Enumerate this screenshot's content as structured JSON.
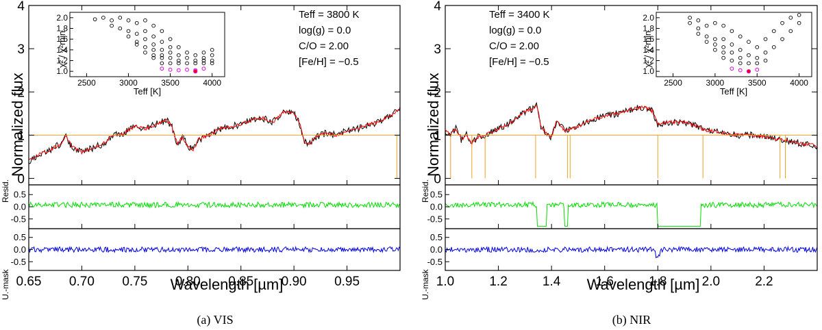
{
  "chart_data": [
    {
      "type": "line",
      "panel_id": "vis",
      "caption": "(a) VIS",
      "xlabel": "Wavelength [µm]",
      "ylabel": "Normalized flux",
      "xlim": [
        0.65,
        1.0
      ],
      "ylim": [
        -0.15,
        4.0
      ],
      "xticks": [
        "0.65",
        "0.70",
        "0.75",
        "0.80",
        "0.85",
        "0.90",
        "0.95"
      ],
      "xtick_values": [
        0.65,
        0.7,
        0.75,
        0.8,
        0.85,
        0.9,
        0.95
      ],
      "yticks": [
        "0",
        "1",
        "2",
        "3",
        "4"
      ],
      "ytick_values": [
        0,
        1,
        2,
        3,
        4
      ],
      "params": [
        "Teff = 3800 K",
        "log(g) = 0.0",
        "C/O = 2.00",
        "[Fe/H] = −0.5"
      ],
      "spectrum_knots": {
        "x": [
          0.65,
          0.66,
          0.67,
          0.68,
          0.685,
          0.69,
          0.7,
          0.71,
          0.72,
          0.73,
          0.74,
          0.75,
          0.76,
          0.77,
          0.78,
          0.785,
          0.79,
          0.795,
          0.8,
          0.805,
          0.81,
          0.82,
          0.83,
          0.84,
          0.85,
          0.86,
          0.87,
          0.88,
          0.89,
          0.9,
          0.905,
          0.91,
          0.915,
          0.92,
          0.93,
          0.94,
          0.95,
          0.96,
          0.97,
          0.98,
          0.99,
          1.0
        ],
        "y": [
          0.4,
          0.55,
          0.65,
          0.8,
          1.0,
          0.75,
          0.6,
          0.7,
          0.8,
          1.0,
          1.05,
          1.2,
          1.15,
          1.25,
          1.35,
          1.2,
          0.8,
          0.95,
          0.75,
          0.65,
          0.9,
          1.0,
          1.15,
          1.2,
          1.25,
          1.35,
          1.4,
          1.3,
          1.55,
          1.5,
          1.3,
          0.85,
          0.8,
          0.95,
          1.05,
          1.0,
          1.1,
          1.15,
          1.25,
          1.3,
          1.45,
          1.6
        ]
      },
      "mask_level": 1.0,
      "mask_edges": [
        0.997
      ],
      "residual_panels": [
        "Resid.",
        "U.-mask"
      ],
      "residual_ylim": [
        -0.9,
        0.9
      ],
      "residual_ticks": [
        "0.5",
        "0.0",
        "-0.5"
      ],
      "residual_tick_values": [
        0.5,
        0.0,
        -0.5
      ],
      "inset": {
        "xlabel": "Teff [K]",
        "ylabel": "χ² / χ²min",
        "xlim": [
          2300,
          4150
        ],
        "ylim": [
          0.9,
          2.1
        ],
        "xticks": [
          "2500",
          "3000",
          "3500",
          "4000"
        ],
        "xtick_values": [
          2500,
          3000,
          3500,
          4000
        ],
        "yticks": [
          "1.0",
          "1.2",
          "1.4",
          "1.6",
          "1.8",
          "2.0"
        ],
        "ytick_values": [
          1.0,
          1.2,
          1.4,
          1.6,
          1.8,
          2.0
        ],
        "black_teff": [
          2600,
          2700,
          2800,
          2800,
          2900,
          2900,
          3000,
          3000,
          3000,
          3100,
          3100,
          3100,
          3100,
          3200,
          3200,
          3200,
          3200,
          3200,
          3300,
          3300,
          3300,
          3300,
          3300,
          3300,
          3400,
          3400,
          3400,
          3400,
          3400,
          3400,
          3500,
          3500,
          3500,
          3500,
          3500,
          3600,
          3600,
          3600,
          3600,
          3700,
          3700,
          3700,
          3800,
          3800,
          3800,
          3900,
          3900,
          3900,
          3900,
          4000,
          4000,
          4000,
          4000
        ],
        "black_chi": [
          1.97,
          2.0,
          1.95,
          1.85,
          2.0,
          1.8,
          1.95,
          1.75,
          1.65,
          1.9,
          1.7,
          1.55,
          1.5,
          1.95,
          1.75,
          1.6,
          1.45,
          1.35,
          1.85,
          1.65,
          1.5,
          1.4,
          1.3,
          1.25,
          1.75,
          1.55,
          1.4,
          1.3,
          1.25,
          1.15,
          1.6,
          1.45,
          1.35,
          1.25,
          1.15,
          1.45,
          1.3,
          1.2,
          1.15,
          1.35,
          1.25,
          1.15,
          1.3,
          1.2,
          1.15,
          1.35,
          1.25,
          1.2,
          1.15,
          1.4,
          1.3,
          1.2,
          1.15
        ],
        "magenta_teff": [
          3400,
          3500,
          3600,
          3700,
          3800,
          3900
        ],
        "magenta_chi": [
          1.05,
          1.03,
          1.02,
          1.03,
          1.02,
          1.05
        ],
        "best_teff": 3800,
        "best_chi": 1.0
      }
    },
    {
      "type": "line",
      "panel_id": "nir",
      "caption": "(b) NIR",
      "xlabel": "Wavelength [µm]",
      "ylabel": "Normalized flux",
      "xlim": [
        1.0,
        2.4
      ],
      "ylim": [
        -0.15,
        4.0
      ],
      "xticks": [
        "1.0",
        "1.2",
        "1.4",
        "1.6",
        "1.8",
        "2.0",
        "2.2"
      ],
      "xtick_values": [
        1.0,
        1.2,
        1.4,
        1.6,
        1.8,
        2.0,
        2.2
      ],
      "yticks": [
        "0",
        "1",
        "2",
        "3",
        "4"
      ],
      "ytick_values": [
        0,
        1,
        2,
        3,
        4
      ],
      "params": [
        "Teff = 3400 K",
        "log(g) = 0.0",
        "C/O = 2.00",
        "[Fe/H] = −0.5"
      ],
      "spectrum_knots": {
        "x": [
          1.0,
          1.02,
          1.04,
          1.06,
          1.08,
          1.1,
          1.12,
          1.15,
          1.2,
          1.25,
          1.3,
          1.33,
          1.345,
          1.36,
          1.38,
          1.4,
          1.42,
          1.45,
          1.5,
          1.55,
          1.6,
          1.65,
          1.7,
          1.75,
          1.78,
          1.8,
          1.85,
          1.9,
          1.95,
          1.98,
          2.0,
          2.05,
          2.1,
          2.15,
          2.2,
          2.25,
          2.3,
          2.35,
          2.4
        ],
        "y": [
          1.1,
          1.0,
          1.15,
          0.9,
          1.0,
          0.8,
          0.95,
          1.0,
          1.15,
          1.3,
          1.55,
          1.6,
          1.7,
          1.2,
          1.05,
          0.95,
          1.35,
          1.1,
          1.2,
          1.35,
          1.45,
          1.5,
          1.6,
          1.65,
          1.55,
          1.25,
          1.3,
          1.3,
          1.2,
          1.1,
          1.1,
          1.05,
          1.0,
          1.0,
          0.95,
          0.9,
          0.85,
          0.8,
          0.75
        ]
      },
      "mask_level": 1.0,
      "mask_edges": [
        1.02,
        1.1,
        1.15,
        1.34,
        1.46,
        1.47,
        1.8,
        1.97,
        2.26,
        2.28
      ],
      "residual_panels": [
        "Resid.",
        "U.-mask"
      ],
      "residual_ylim": [
        -0.9,
        0.9
      ],
      "residual_ticks": [
        "0.5",
        "0.0",
        "-0.5"
      ],
      "residual_tick_values": [
        0.5,
        0.0,
        -0.5
      ],
      "inset": {
        "xlabel": "Teff [K]",
        "ylabel": "χ² / χ²min",
        "xlim": [
          2300,
          4150
        ],
        "ylim": [
          0.9,
          2.1
        ],
        "xticks": [
          "2500",
          "3000",
          "3500",
          "4000"
        ],
        "xtick_values": [
          2500,
          3000,
          3500,
          4000
        ],
        "yticks": [
          "1.0",
          "1.2",
          "1.4",
          "1.6",
          "1.8",
          "2.0"
        ],
        "ytick_values": [
          1.0,
          1.2,
          1.4,
          1.6,
          1.8,
          2.0
        ],
        "black_teff": [
          2700,
          2700,
          2800,
          2800,
          2800,
          2900,
          2900,
          2900,
          3000,
          3000,
          3000,
          3000,
          3100,
          3100,
          3100,
          3100,
          3100,
          3200,
          3200,
          3200,
          3200,
          3300,
          3300,
          3300,
          3300,
          3400,
          3400,
          3400,
          3500,
          3500,
          3500,
          3600,
          3600,
          3600,
          3700,
          3700,
          3800,
          3800,
          3900,
          3900,
          4000,
          4000
        ],
        "black_chi": [
          2.0,
          1.9,
          1.95,
          1.8,
          1.7,
          1.85,
          1.65,
          1.55,
          1.9,
          1.6,
          1.5,
          1.4,
          1.85,
          1.6,
          1.45,
          1.35,
          1.25,
          1.75,
          1.5,
          1.35,
          1.2,
          1.65,
          1.4,
          1.25,
          1.15,
          1.55,
          1.3,
          1.15,
          1.45,
          1.25,
          1.15,
          1.6,
          1.35,
          1.2,
          1.75,
          1.45,
          1.9,
          1.6,
          2.0,
          1.75,
          2.05,
          1.9
        ],
        "magenta_teff": [
          3200,
          3300,
          3500
        ],
        "magenta_chi": [
          1.05,
          1.02,
          1.03
        ],
        "best_teff": 3400,
        "best_chi": 1.0
      }
    }
  ]
}
